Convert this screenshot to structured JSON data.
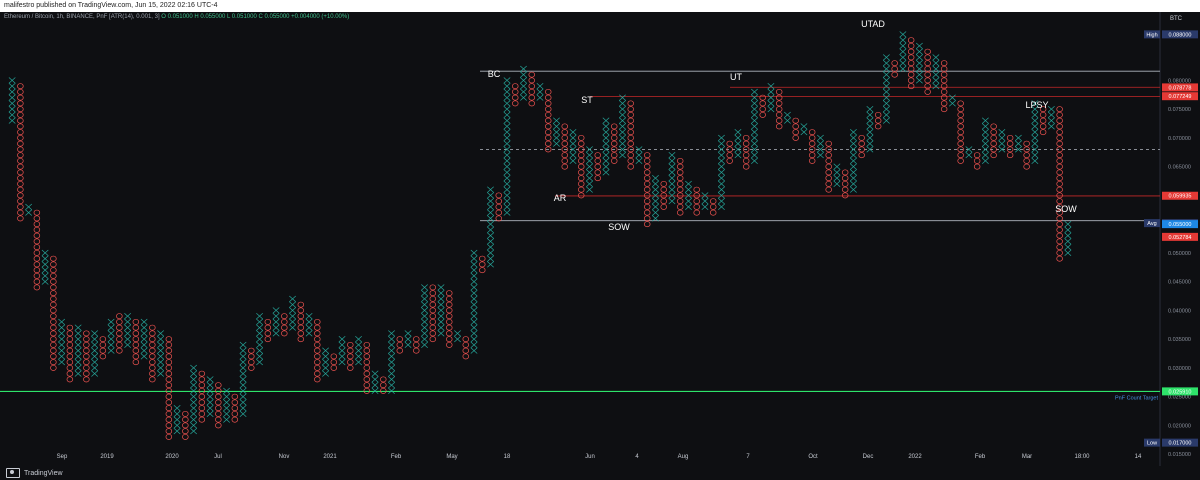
{
  "header": {
    "published": "malifestro published on TradingView.com, Jun 15, 2022 02:16 UTC-4",
    "symbol": "Ethereum / Bitcoin, 1h, BINANCE, PnF [ATR(14), 0.001, 3]",
    "ohlc": "O 0.051000  H 0.055000  L 0.051000  C 0.055000  +0.004000 (+10.00%)"
  },
  "footer": {
    "brand": "TradingView"
  },
  "colors": {
    "x": "#26a69a",
    "o": "#ef5350",
    "bg": "#0e0f12",
    "green_line": "#2ee36a"
  },
  "chart_data": {
    "type": "point-and-figure",
    "currency_label": "BTC",
    "y_axis_ticks": [
      "0.080000",
      "0.075000",
      "0.070000",
      "0.065000",
      "0.060000",
      "0.055000",
      "0.050000",
      "0.045000",
      "0.040000",
      "0.035000",
      "0.030000",
      "0.025000",
      "0.020000",
      "0.015000"
    ],
    "x_axis_ticks": [
      "Sep",
      "2019",
      "2020",
      "Jul",
      "Nov",
      "2021",
      "Feb",
      "May",
      "18",
      "Jun",
      "4",
      "Aug",
      "7",
      "Oct",
      "Dec",
      "2022",
      "Feb",
      "Mar",
      "18:00",
      "14"
    ],
    "ylim": [
      0.0145,
      0.0905
    ],
    "price_tags": [
      {
        "label": "High",
        "value": "0.088000",
        "y": 0.088,
        "color": "#2a3a6a"
      },
      {
        "label": "",
        "value": "0.078778",
        "y": 0.078778,
        "color": "#e53935"
      },
      {
        "label": "",
        "value": "0.077249",
        "y": 0.077249,
        "color": "#e53935"
      },
      {
        "label": "",
        "value": "0.059935",
        "y": 0.059935,
        "color": "#e53935"
      },
      {
        "label": "Avg",
        "value": "0.055174",
        "y": 0.055174,
        "color": "#2a3a6a"
      },
      {
        "label": "",
        "value": "0.055000",
        "y": 0.055,
        "color": "#1e88e5"
      },
      {
        "label": "",
        "value": "0.052784",
        "y": 0.052784,
        "color": "#e53935"
      },
      {
        "label": "",
        "value": "0.025910",
        "y": 0.02591,
        "color": "#2ee36a"
      },
      {
        "label": "Low",
        "value": "0.017000",
        "y": 0.017,
        "color": "#2a3a6a"
      }
    ],
    "target_label": "PnF Count Target",
    "annotations": [
      {
        "text": "BC",
        "x": 0.08,
        "y": 0.0805
      },
      {
        "text": "ST",
        "x": 0.08,
        "y": 0.075
      },
      {
        "text": "AR",
        "x": 0.0805,
        "y": 0.059
      },
      {
        "text": "SOW",
        "x": 0.0805,
        "y": 0.0553
      },
      {
        "text": "UT",
        "x": 0.08,
        "y": 0.08
      },
      {
        "text": "UTAD",
        "x": 0.08,
        "y": 0.091
      },
      {
        "text": "LPSY",
        "x": 0.08,
        "y": 0.075
      },
      {
        "text": "SOW",
        "x": 0.08,
        "y": 0.057
      }
    ],
    "levels": [
      {
        "name": "range-top",
        "y": 0.0816,
        "color": "#b0b6c0",
        "style": "solid"
      },
      {
        "name": "range-mid",
        "y": 0.068,
        "color": "#b0b6c0",
        "style": "dashed"
      },
      {
        "name": "range-bottom",
        "y": 0.0556,
        "color": "#b0b6c0",
        "style": "solid"
      },
      {
        "name": "resistance-1",
        "y": 0.0788,
        "color": "#c62828",
        "style": "solid"
      },
      {
        "name": "resistance-2",
        "y": 0.0772,
        "color": "#c62828",
        "style": "solid"
      },
      {
        "name": "support-red",
        "y": 0.0599,
        "color": "#c62828",
        "style": "solid"
      },
      {
        "name": "pnf-target",
        "y": 0.0259,
        "color": "#2ee36a",
        "style": "solid"
      }
    ],
    "columns": [
      {
        "t": "X",
        "lo": 0.073,
        "hi": 0.08
      },
      {
        "t": "O",
        "lo": 0.056,
        "hi": 0.079
      },
      {
        "t": "X",
        "lo": 0.057,
        "hi": 0.058
      },
      {
        "t": "O",
        "lo": 0.044,
        "hi": 0.057
      },
      {
        "t": "X",
        "lo": 0.045,
        "hi": 0.05
      },
      {
        "t": "O",
        "lo": 0.03,
        "hi": 0.049
      },
      {
        "t": "X",
        "lo": 0.031,
        "hi": 0.038
      },
      {
        "t": "O",
        "lo": 0.028,
        "hi": 0.037
      },
      {
        "t": "X",
        "lo": 0.029,
        "hi": 0.037
      },
      {
        "t": "O",
        "lo": 0.028,
        "hi": 0.036
      },
      {
        "t": "X",
        "lo": 0.029,
        "hi": 0.036
      },
      {
        "t": "O",
        "lo": 0.032,
        "hi": 0.035
      },
      {
        "t": "X",
        "lo": 0.033,
        "hi": 0.038
      },
      {
        "t": "O",
        "lo": 0.033,
        "hi": 0.039
      },
      {
        "t": "X",
        "lo": 0.034,
        "hi": 0.039
      },
      {
        "t": "O",
        "lo": 0.031,
        "hi": 0.038
      },
      {
        "t": "X",
        "lo": 0.032,
        "hi": 0.038
      },
      {
        "t": "O",
        "lo": 0.028,
        "hi": 0.037
      },
      {
        "t": "X",
        "lo": 0.029,
        "hi": 0.036
      },
      {
        "t": "O",
        "lo": 0.018,
        "hi": 0.035
      },
      {
        "t": "X",
        "lo": 0.019,
        "hi": 0.023
      },
      {
        "t": "O",
        "lo": 0.018,
        "hi": 0.022
      },
      {
        "t": "X",
        "lo": 0.019,
        "hi": 0.03
      },
      {
        "t": "O",
        "lo": 0.021,
        "hi": 0.029
      },
      {
        "t": "X",
        "lo": 0.022,
        "hi": 0.028
      },
      {
        "t": "O",
        "lo": 0.02,
        "hi": 0.027
      },
      {
        "t": "X",
        "lo": 0.021,
        "hi": 0.026
      },
      {
        "t": "O",
        "lo": 0.021,
        "hi": 0.025
      },
      {
        "t": "X",
        "lo": 0.022,
        "hi": 0.034
      },
      {
        "t": "O",
        "lo": 0.03,
        "hi": 0.033
      },
      {
        "t": "X",
        "lo": 0.031,
        "hi": 0.039
      },
      {
        "t": "O",
        "lo": 0.035,
        "hi": 0.038
      },
      {
        "t": "X",
        "lo": 0.036,
        "hi": 0.04
      },
      {
        "t": "O",
        "lo": 0.036,
        "hi": 0.039
      },
      {
        "t": "X",
        "lo": 0.037,
        "hi": 0.042
      },
      {
        "t": "O",
        "lo": 0.035,
        "hi": 0.041
      },
      {
        "t": "X",
        "lo": 0.036,
        "hi": 0.039
      },
      {
        "t": "O",
        "lo": 0.028,
        "hi": 0.038
      },
      {
        "t": "X",
        "lo": 0.029,
        "hi": 0.033
      },
      {
        "t": "O",
        "lo": 0.03,
        "hi": 0.032
      },
      {
        "t": "X",
        "lo": 0.031,
        "hi": 0.035
      },
      {
        "t": "O",
        "lo": 0.03,
        "hi": 0.034
      },
      {
        "t": "X",
        "lo": 0.031,
        "hi": 0.035
      },
      {
        "t": "O",
        "lo": 0.026,
        "hi": 0.034
      },
      {
        "t": "X",
        "lo": 0.026,
        "hi": 0.029
      },
      {
        "t": "O",
        "lo": 0.026,
        "hi": 0.028
      },
      {
        "t": "X",
        "lo": 0.026,
        "hi": 0.036
      },
      {
        "t": "O",
        "lo": 0.033,
        "hi": 0.035
      },
      {
        "t": "X",
        "lo": 0.034,
        "hi": 0.036
      },
      {
        "t": "O",
        "lo": 0.033,
        "hi": 0.035
      },
      {
        "t": "X",
        "lo": 0.034,
        "hi": 0.044
      },
      {
        "t": "O",
        "lo": 0.035,
        "hi": 0.044
      },
      {
        "t": "X",
        "lo": 0.036,
        "hi": 0.044
      },
      {
        "t": "O",
        "lo": 0.034,
        "hi": 0.043
      },
      {
        "t": "X",
        "lo": 0.035,
        "hi": 0.036
      },
      {
        "t": "O",
        "lo": 0.032,
        "hi": 0.035
      },
      {
        "t": "X",
        "lo": 0.033,
        "hi": 0.05
      },
      {
        "t": "O",
        "lo": 0.047,
        "hi": 0.049
      },
      {
        "t": "X",
        "lo": 0.048,
        "hi": 0.061
      },
      {
        "t": "O",
        "lo": 0.056,
        "hi": 0.06
      },
      {
        "t": "X",
        "lo": 0.057,
        "hi": 0.08
      },
      {
        "t": "O",
        "lo": 0.076,
        "hi": 0.079
      },
      {
        "t": "X",
        "lo": 0.077,
        "hi": 0.082
      },
      {
        "t": "O",
        "lo": 0.076,
        "hi": 0.081
      },
      {
        "t": "X",
        "lo": 0.077,
        "hi": 0.079
      },
      {
        "t": "O",
        "lo": 0.068,
        "hi": 0.078
      },
      {
        "t": "X",
        "lo": 0.069,
        "hi": 0.073
      },
      {
        "t": "O",
        "lo": 0.065,
        "hi": 0.072
      },
      {
        "t": "X",
        "lo": 0.066,
        "hi": 0.071
      },
      {
        "t": "O",
        "lo": 0.06,
        "hi": 0.07
      },
      {
        "t": "X",
        "lo": 0.061,
        "hi": 0.068
      },
      {
        "t": "O",
        "lo": 0.063,
        "hi": 0.067
      },
      {
        "t": "X",
        "lo": 0.064,
        "hi": 0.073
      },
      {
        "t": "O",
        "lo": 0.066,
        "hi": 0.072
      },
      {
        "t": "X",
        "lo": 0.067,
        "hi": 0.077
      },
      {
        "t": "O",
        "lo": 0.065,
        "hi": 0.076
      },
      {
        "t": "X",
        "lo": 0.066,
        "hi": 0.068
      },
      {
        "t": "O",
        "lo": 0.055,
        "hi": 0.067
      },
      {
        "t": "X",
        "lo": 0.056,
        "hi": 0.063
      },
      {
        "t": "O",
        "lo": 0.058,
        "hi": 0.062
      },
      {
        "t": "X",
        "lo": 0.059,
        "hi": 0.067
      },
      {
        "t": "O",
        "lo": 0.057,
        "hi": 0.066
      },
      {
        "t": "X",
        "lo": 0.058,
        "hi": 0.062
      },
      {
        "t": "O",
        "lo": 0.057,
        "hi": 0.061
      },
      {
        "t": "X",
        "lo": 0.058,
        "hi": 0.06
      },
      {
        "t": "O",
        "lo": 0.057,
        "hi": 0.059
      },
      {
        "t": "X",
        "lo": 0.058,
        "hi": 0.07
      },
      {
        "t": "O",
        "lo": 0.066,
        "hi": 0.069
      },
      {
        "t": "X",
        "lo": 0.067,
        "hi": 0.071
      },
      {
        "t": "O",
        "lo": 0.065,
        "hi": 0.07
      },
      {
        "t": "X",
        "lo": 0.066,
        "hi": 0.078
      },
      {
        "t": "O",
        "lo": 0.074,
        "hi": 0.077
      },
      {
        "t": "X",
        "lo": 0.075,
        "hi": 0.079
      },
      {
        "t": "O",
        "lo": 0.072,
        "hi": 0.078
      },
      {
        "t": "X",
        "lo": 0.073,
        "hi": 0.074
      },
      {
        "t": "O",
        "lo": 0.07,
        "hi": 0.073
      },
      {
        "t": "X",
        "lo": 0.071,
        "hi": 0.072
      },
      {
        "t": "O",
        "lo": 0.066,
        "hi": 0.071
      },
      {
        "t": "X",
        "lo": 0.067,
        "hi": 0.07
      },
      {
        "t": "O",
        "lo": 0.061,
        "hi": 0.069
      },
      {
        "t": "X",
        "lo": 0.062,
        "hi": 0.065
      },
      {
        "t": "O",
        "lo": 0.06,
        "hi": 0.064
      },
      {
        "t": "X",
        "lo": 0.061,
        "hi": 0.071
      },
      {
        "t": "O",
        "lo": 0.067,
        "hi": 0.07
      },
      {
        "t": "X",
        "lo": 0.068,
        "hi": 0.075
      },
      {
        "t": "O",
        "lo": 0.072,
        "hi": 0.074
      },
      {
        "t": "X",
        "lo": 0.073,
        "hi": 0.084
      },
      {
        "t": "O",
        "lo": 0.081,
        "hi": 0.083
      },
      {
        "t": "X",
        "lo": 0.082,
        "hi": 0.088
      },
      {
        "t": "O",
        "lo": 0.079,
        "hi": 0.087
      },
      {
        "t": "X",
        "lo": 0.08,
        "hi": 0.086
      },
      {
        "t": "O",
        "lo": 0.078,
        "hi": 0.085
      },
      {
        "t": "X",
        "lo": 0.079,
        "hi": 0.084
      },
      {
        "t": "O",
        "lo": 0.075,
        "hi": 0.083
      },
      {
        "t": "X",
        "lo": 0.076,
        "hi": 0.077
      },
      {
        "t": "O",
        "lo": 0.066,
        "hi": 0.076
      },
      {
        "t": "X",
        "lo": 0.067,
        "hi": 0.068
      },
      {
        "t": "O",
        "lo": 0.065,
        "hi": 0.067
      },
      {
        "t": "X",
        "lo": 0.066,
        "hi": 0.073
      },
      {
        "t": "O",
        "lo": 0.067,
        "hi": 0.072
      },
      {
        "t": "X",
        "lo": 0.068,
        "hi": 0.071
      },
      {
        "t": "O",
        "lo": 0.067,
        "hi": 0.07
      },
      {
        "t": "X",
        "lo": 0.068,
        "hi": 0.07
      },
      {
        "t": "O",
        "lo": 0.065,
        "hi": 0.069
      },
      {
        "t": "X",
        "lo": 0.066,
        "hi": 0.076
      },
      {
        "t": "O",
        "lo": 0.071,
        "hi": 0.075
      },
      {
        "t": "X",
        "lo": 0.072,
        "hi": 0.075
      },
      {
        "t": "O",
        "lo": 0.049,
        "hi": 0.075
      },
      {
        "t": "X",
        "lo": 0.05,
        "hi": 0.055
      }
    ]
  }
}
